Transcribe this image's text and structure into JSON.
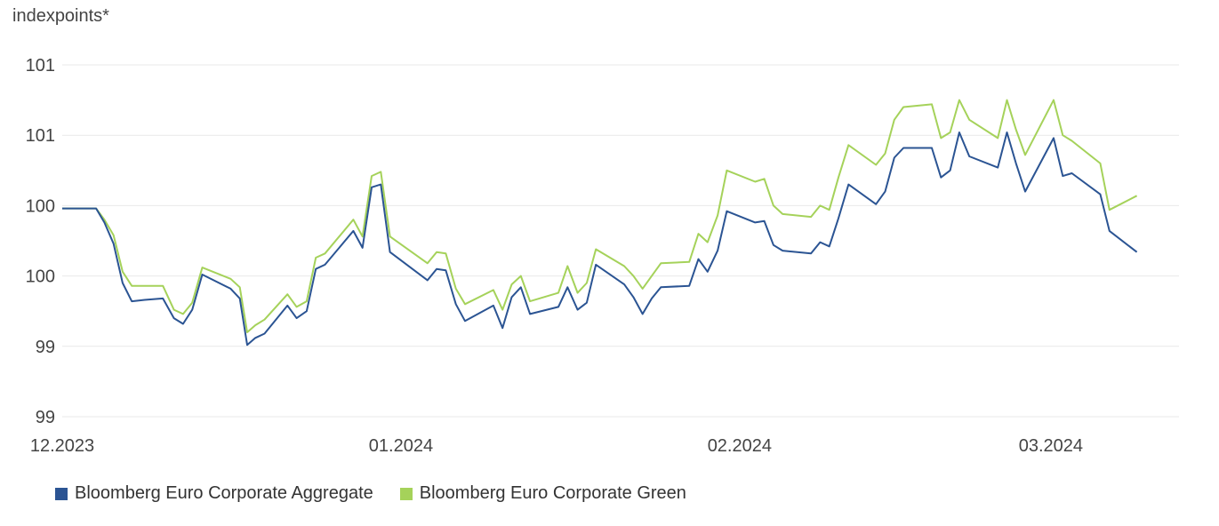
{
  "chart_data": {
    "type": "line",
    "ylabel": "indexpoints*",
    "y_ticks": [
      {
        "value": 98.5,
        "label": "99"
      },
      {
        "value": 99.0,
        "label": "99"
      },
      {
        "value": 99.5,
        "label": "100"
      },
      {
        "value": 100.0,
        "label": "100"
      },
      {
        "value": 100.5,
        "label": "101"
      },
      {
        "value": 101.0,
        "label": "101"
      }
    ],
    "ylim": [
      98.5,
      101.0
    ],
    "x_range": [
      0,
      122
    ],
    "x_ticks": [
      {
        "x": 0,
        "label": "12.2023"
      },
      {
        "x": 37,
        "label": "01.2024"
      },
      {
        "x": 74,
        "label": "02.2024"
      },
      {
        "x": 108,
        "label": "03.2024"
      }
    ],
    "colors": {
      "aggregate": "#2b5493",
      "green": "#a5d25a",
      "grid": "#e9e9e9"
    },
    "series": [
      {
        "name": "Bloomberg Euro Corporate Aggregate",
        "color": "#2b5493",
        "points": [
          [
            0,
            99.98
          ],
          [
            3,
            99.98
          ],
          [
            3.7,
            99.98
          ],
          [
            4.6,
            99.88
          ],
          [
            5.6,
            99.73
          ],
          [
            6.6,
            99.45
          ],
          [
            7.6,
            99.32
          ],
          [
            9,
            99.33
          ],
          [
            11,
            99.34
          ],
          [
            12.2,
            99.2
          ],
          [
            13.2,
            99.16
          ],
          [
            14.2,
            99.26
          ],
          [
            15.3,
            99.51
          ],
          [
            18.4,
            99.41
          ],
          [
            19.4,
            99.34
          ],
          [
            20.2,
            99.01
          ],
          [
            21.1,
            99.06
          ],
          [
            22.1,
            99.09
          ],
          [
            24.6,
            99.29
          ],
          [
            25.6,
            99.2
          ],
          [
            26.7,
            99.25
          ],
          [
            27.7,
            99.55
          ],
          [
            28.7,
            99.58
          ],
          [
            31.8,
            99.82
          ],
          [
            32.8,
            99.7
          ],
          [
            33.8,
            100.13
          ],
          [
            34.8,
            100.15
          ],
          [
            35.8,
            99.67
          ],
          [
            39.9,
            99.47
          ],
          [
            40.9,
            99.55
          ],
          [
            41.9,
            99.54
          ],
          [
            43,
            99.3
          ],
          [
            44,
            99.18
          ],
          [
            47.1,
            99.29
          ],
          [
            48.1,
            99.13
          ],
          [
            49.1,
            99.35
          ],
          [
            50.1,
            99.42
          ],
          [
            51.1,
            99.23
          ],
          [
            54.2,
            99.28
          ],
          [
            55.2,
            99.42
          ],
          [
            56.3,
            99.26
          ],
          [
            57.3,
            99.31
          ],
          [
            58.3,
            99.58
          ],
          [
            61.4,
            99.44
          ],
          [
            62.4,
            99.35
          ],
          [
            63.4,
            99.23
          ],
          [
            64.4,
            99.34
          ],
          [
            65.4,
            99.42
          ],
          [
            68.5,
            99.43
          ],
          [
            69.5,
            99.62
          ],
          [
            70.5,
            99.53
          ],
          [
            71.6,
            99.68
          ],
          [
            72.6,
            99.96
          ],
          [
            75.7,
            99.88
          ],
          [
            76.7,
            99.89
          ],
          [
            77.7,
            99.72
          ],
          [
            78.7,
            99.68
          ],
          [
            81.8,
            99.66
          ],
          [
            82.8,
            99.74
          ],
          [
            83.8,
            99.71
          ],
          [
            84.8,
            99.91
          ],
          [
            85.9,
            100.15
          ],
          [
            88.9,
            100.01
          ],
          [
            89.9,
            100.1
          ],
          [
            90.9,
            100.34
          ],
          [
            91.9,
            100.41
          ],
          [
            95,
            100.41
          ],
          [
            96,
            100.2
          ],
          [
            97,
            100.25
          ],
          [
            98,
            100.52
          ],
          [
            99.1,
            100.35
          ],
          [
            102.2,
            100.27
          ],
          [
            103.2,
            100.52
          ],
          [
            104.2,
            100.3
          ],
          [
            105.2,
            100.1
          ],
          [
            108.3,
            100.48
          ],
          [
            109.3,
            100.21
          ],
          [
            110.3,
            100.23
          ],
          [
            113.4,
            100.08
          ],
          [
            114.4,
            99.82
          ],
          [
            117.4,
            99.67
          ]
        ]
      },
      {
        "name": "Bloomberg Euro Corporate Green",
        "color": "#a5d25a",
        "points": [
          [
            0,
            99.98
          ],
          [
            3,
            99.98
          ],
          [
            3.7,
            99.98
          ],
          [
            4.6,
            99.9
          ],
          [
            5.6,
            99.79
          ],
          [
            6.6,
            99.53
          ],
          [
            7.6,
            99.43
          ],
          [
            9,
            99.43
          ],
          [
            11,
            99.43
          ],
          [
            12.2,
            99.26
          ],
          [
            13.2,
            99.23
          ],
          [
            14.2,
            99.31
          ],
          [
            15.3,
            99.56
          ],
          [
            18.4,
            99.48
          ],
          [
            19.4,
            99.42
          ],
          [
            20.2,
            99.1
          ],
          [
            21.1,
            99.15
          ],
          [
            22.1,
            99.19
          ],
          [
            24.6,
            99.37
          ],
          [
            25.6,
            99.28
          ],
          [
            26.7,
            99.32
          ],
          [
            27.7,
            99.63
          ],
          [
            28.7,
            99.66
          ],
          [
            31.8,
            99.9
          ],
          [
            32.8,
            99.78
          ],
          [
            33.8,
            100.21
          ],
          [
            34.8,
            100.24
          ],
          [
            35.8,
            99.78
          ],
          [
            39.9,
            99.59
          ],
          [
            40.9,
            99.67
          ],
          [
            41.9,
            99.66
          ],
          [
            43,
            99.41
          ],
          [
            44,
            99.3
          ],
          [
            47.1,
            99.4
          ],
          [
            48.1,
            99.26
          ],
          [
            49.1,
            99.44
          ],
          [
            50.1,
            99.5
          ],
          [
            51.1,
            99.32
          ],
          [
            54.2,
            99.38
          ],
          [
            55.2,
            99.57
          ],
          [
            56.3,
            99.38
          ],
          [
            57.3,
            99.45
          ],
          [
            58.3,
            99.69
          ],
          [
            61.4,
            99.57
          ],
          [
            62.4,
            99.5
          ],
          [
            63.4,
            99.41
          ],
          [
            64.4,
            99.5
          ],
          [
            65.4,
            99.59
          ],
          [
            68.5,
            99.6
          ],
          [
            69.5,
            99.8
          ],
          [
            70.5,
            99.74
          ],
          [
            71.6,
            99.93
          ],
          [
            72.6,
            100.25
          ],
          [
            75.7,
            100.17
          ],
          [
            76.7,
            100.19
          ],
          [
            77.7,
            100.0
          ],
          [
            78.7,
            99.94
          ],
          [
            81.8,
            99.92
          ],
          [
            82.8,
            100.0
          ],
          [
            83.8,
            99.97
          ],
          [
            84.8,
            100.2
          ],
          [
            85.9,
            100.43
          ],
          [
            88.9,
            100.29
          ],
          [
            89.9,
            100.37
          ],
          [
            90.9,
            100.61
          ],
          [
            91.9,
            100.7
          ],
          [
            95,
            100.72
          ],
          [
            96,
            100.48
          ],
          [
            97,
            100.52
          ],
          [
            98,
            100.75
          ],
          [
            99.1,
            100.61
          ],
          [
            102.2,
            100.48
          ],
          [
            103.2,
            100.75
          ],
          [
            104.2,
            100.54
          ],
          [
            105.2,
            100.36
          ],
          [
            108.3,
            100.75
          ],
          [
            109.3,
            100.5
          ],
          [
            110.3,
            100.46
          ],
          [
            113.4,
            100.3
          ],
          [
            114.4,
            99.97
          ],
          [
            117.4,
            100.07
          ]
        ]
      }
    ]
  }
}
